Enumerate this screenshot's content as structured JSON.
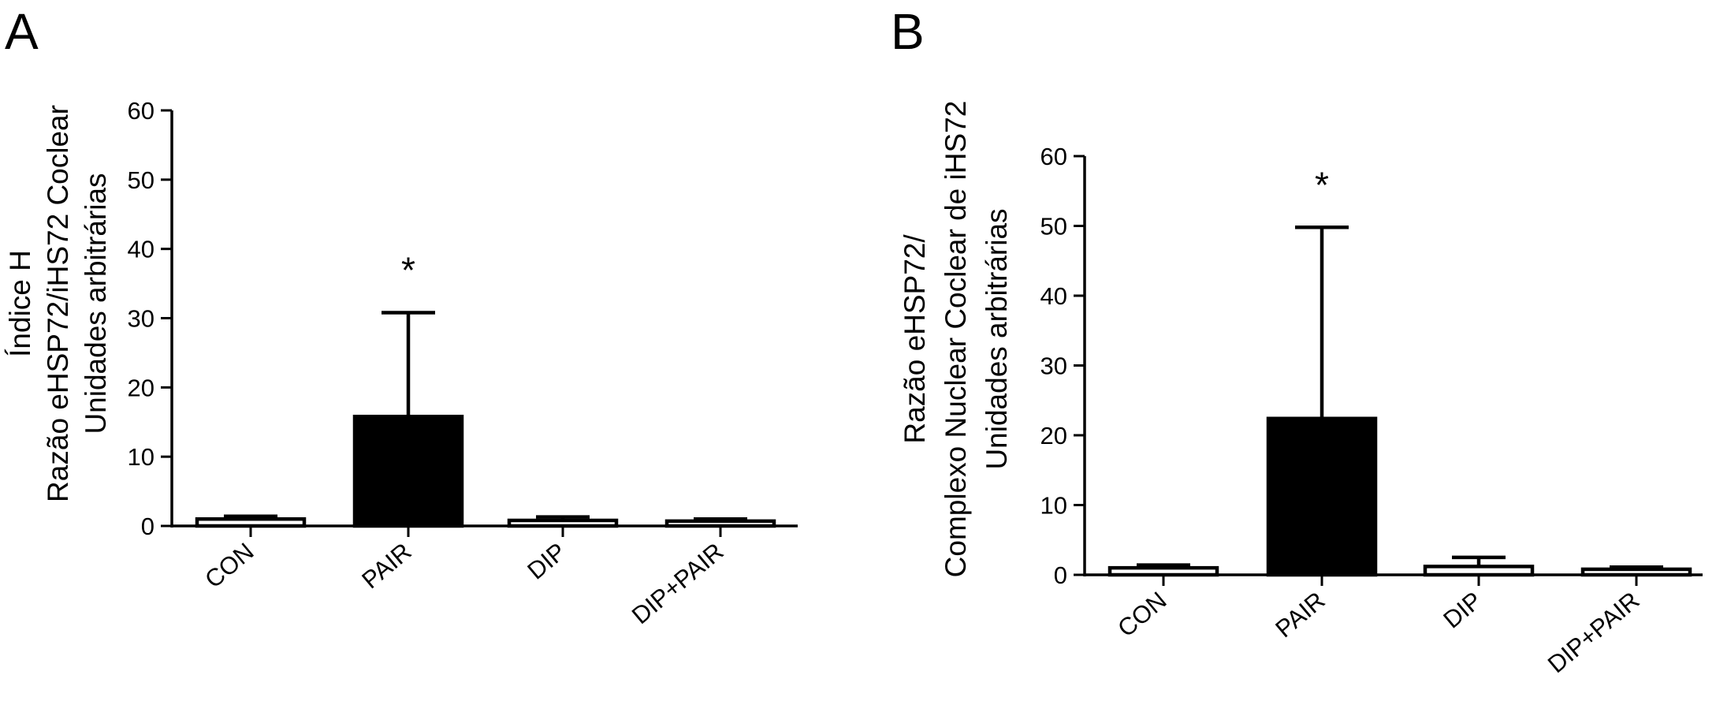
{
  "chart_data": [
    {
      "panel_label": "A",
      "type": "bar",
      "categories": [
        "CON",
        "PAIR",
        "DIP",
        "DIP+PAIR"
      ],
      "values": [
        1.0,
        15.8,
        0.8,
        0.7
      ],
      "error": [
        0.4,
        15.0,
        0.5,
        0.3
      ],
      "significance": [
        "",
        "*",
        "",
        ""
      ],
      "bar_colors": [
        "#ffffff",
        "#000000",
        "#ffffff",
        "#ffffff"
      ],
      "ylabel": [
        "Índice H",
        "Razão eHSP72/iHS72 Coclear",
        "Unidades arbitrárias"
      ],
      "ylim": [
        0,
        60
      ],
      "yticks": [
        0,
        10,
        20,
        30,
        40,
        50,
        60
      ]
    },
    {
      "panel_label": "B",
      "type": "bar",
      "categories": [
        "CON",
        "PAIR",
        "DIP",
        "DIP+PAIR"
      ],
      "values": [
        1.0,
        22.4,
        1.2,
        0.8
      ],
      "error": [
        0.4,
        27.4,
        1.3,
        0.3
      ],
      "significance": [
        "",
        "*",
        "",
        ""
      ],
      "bar_colors": [
        "#ffffff",
        "#000000",
        "#ffffff",
        "#ffffff"
      ],
      "ylabel": [
        "Razão eHSP72/",
        "Complexo Nuclear Coclear de iHS72",
        "Unidades arbitrárias"
      ],
      "ylim": [
        0,
        60
      ],
      "yticks": [
        0,
        10,
        20,
        30,
        40,
        50,
        60
      ]
    }
  ]
}
